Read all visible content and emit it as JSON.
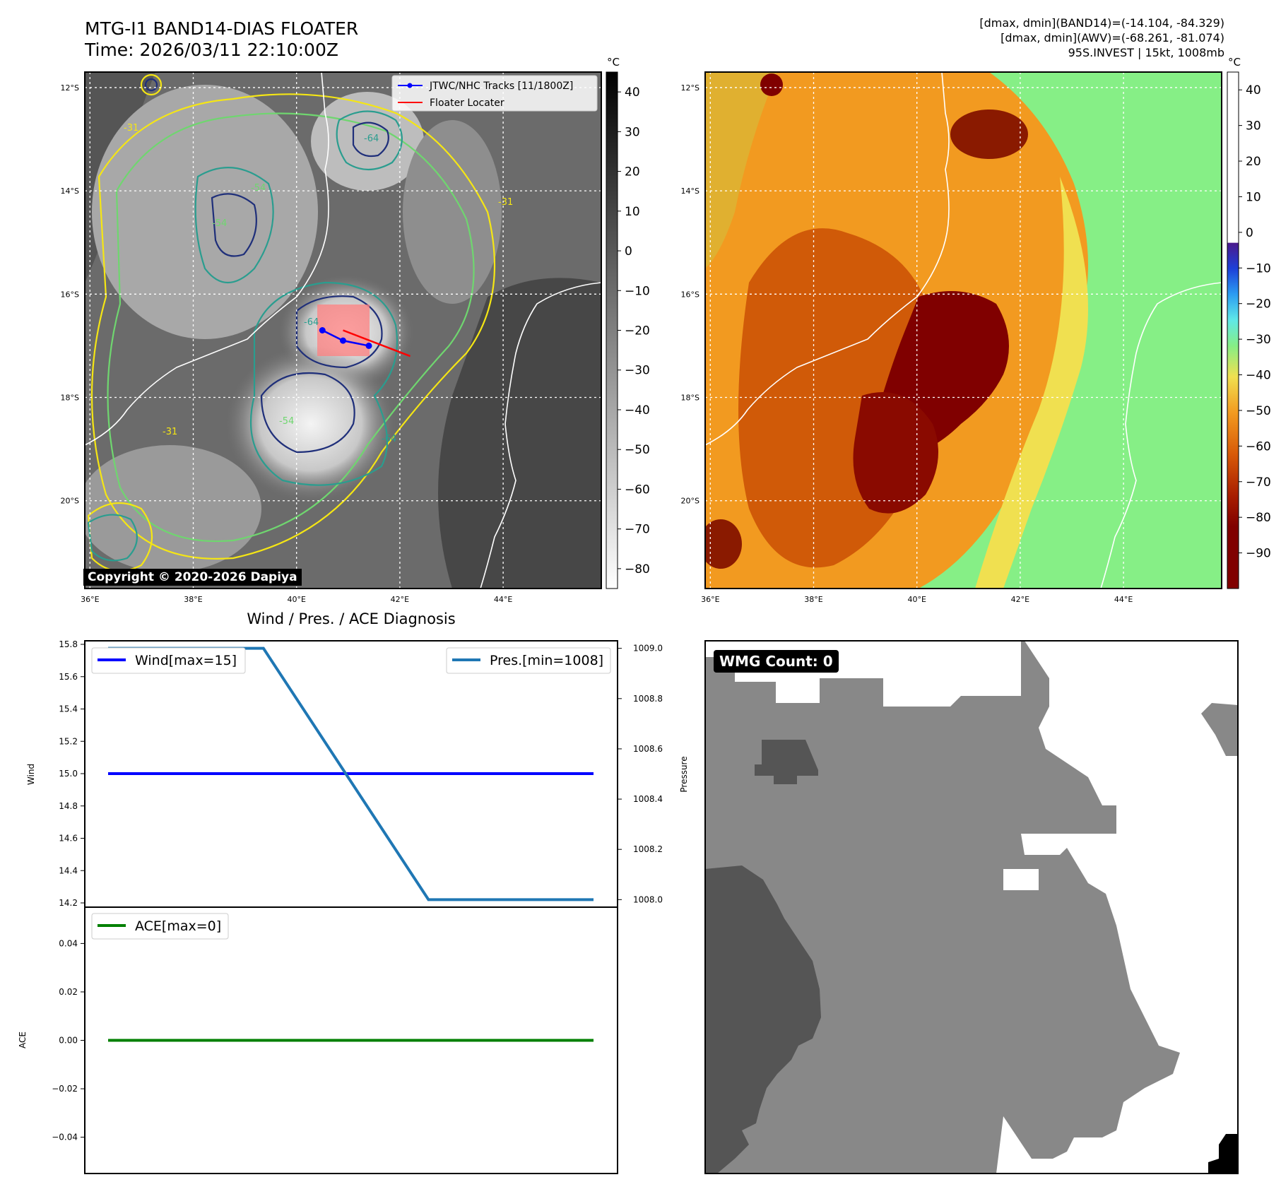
{
  "header": {
    "title_line1": "MTG-I1 BAND14-DIAS FLOATER",
    "title_line2": "Time: 2026/03/11 22:10:00Z",
    "info_line1": "[dmax, dmin](BAND14)=(-14.104, -84.329)",
    "info_line2": "[dmax, dmin](AWV)=(-68.261, -81.074)",
    "info_line3": "95S.INVEST | 15kt, 1008mb"
  },
  "colors": {
    "track": "#0000ff",
    "locator": "#ff0000",
    "wind": "#0000ff",
    "pressure": "#1f77b4",
    "ace": "#008000",
    "contour_yellow": "#f5e614",
    "contour_green": "#6fd66f",
    "contour_teal": "#2a9d8f",
    "contour_navy": "#1f2f7a",
    "awv_dark": "#800000",
    "awv_orange": "#e97a10",
    "awv_green": "#86ef86",
    "wmg_dark": "#555555",
    "wmg_mid": "#888888"
  },
  "maps": {
    "lat_labels": [
      "12°S",
      "14°S",
      "16°S",
      "18°S",
      "20°S"
    ],
    "lon_labels": [
      "36°E",
      "38°E",
      "40°E",
      "42°E",
      "44°E"
    ],
    "unit": "°C",
    "ir_ticks": [
      "40",
      "30",
      "20",
      "10",
      "0",
      "−10",
      "−20",
      "−30",
      "−40",
      "−50",
      "−60",
      "−70",
      "−80"
    ],
    "awv_ticks": [
      "40",
      "30",
      "20",
      "10",
      "0",
      "−10",
      "−20",
      "−30",
      "−40",
      "−50",
      "−60",
      "−70",
      "−80",
      "−90"
    ],
    "legend": [
      "JTWC/NHC Tracks [11/1800Z]",
      "Floater Locater"
    ],
    "contour_labels": [
      "-31",
      "-54",
      "-64",
      "-31",
      "-54",
      "-64",
      "-31",
      "-54",
      "-64"
    ],
    "copyright": "Copyright © 2020-2026 Dapiya",
    "track_points": [
      [
        40.5,
        -16.7
      ],
      [
        40.9,
        -16.9
      ],
      [
        41.4,
        -17.0
      ]
    ],
    "locator_line": [
      [
        40.9,
        -16.7
      ],
      [
        42.2,
        -17.2
      ]
    ]
  },
  "chart_data": [
    {
      "type": "line",
      "title": "Wind / Pres. / ACE Diagnosis",
      "ylabel": "Wind",
      "ylim": [
        14.2,
        15.8
      ],
      "yticks": [
        "15.8",
        "15.6",
        "15.4",
        "15.2",
        "15.0",
        "14.8",
        "14.6",
        "14.4",
        "14.2"
      ],
      "x": [
        0,
        1,
        2,
        3
      ],
      "series": [
        {
          "name": "Wind[max=15]",
          "values": [
            15,
            15,
            15,
            15
          ]
        }
      ]
    },
    {
      "type": "line",
      "ylabel": "Pressure",
      "ylim": [
        1007.97,
        1009.03
      ],
      "yticks": [
        "1009.0",
        "1008.8",
        "1008.6",
        "1008.4",
        "1008.2",
        "1008.0"
      ],
      "x": [
        0,
        1,
        2,
        3
      ],
      "series": [
        {
          "name": "Pres.[min=1008]",
          "values": [
            1009,
            1009,
            1008,
            1008
          ]
        }
      ]
    },
    {
      "type": "line",
      "ylabel": "ACE",
      "ylim": [
        -0.055,
        0.055
      ],
      "yticks": [
        "0.04",
        "0.02",
        "0.00",
        "−0.02",
        "−0.04"
      ],
      "x": [
        0,
        1,
        2,
        3
      ],
      "series": [
        {
          "name": "ACE[max=0]",
          "values": [
            0,
            0,
            0,
            0
          ]
        }
      ]
    }
  ],
  "wmg": {
    "count_label": "WMG Count: 0"
  }
}
